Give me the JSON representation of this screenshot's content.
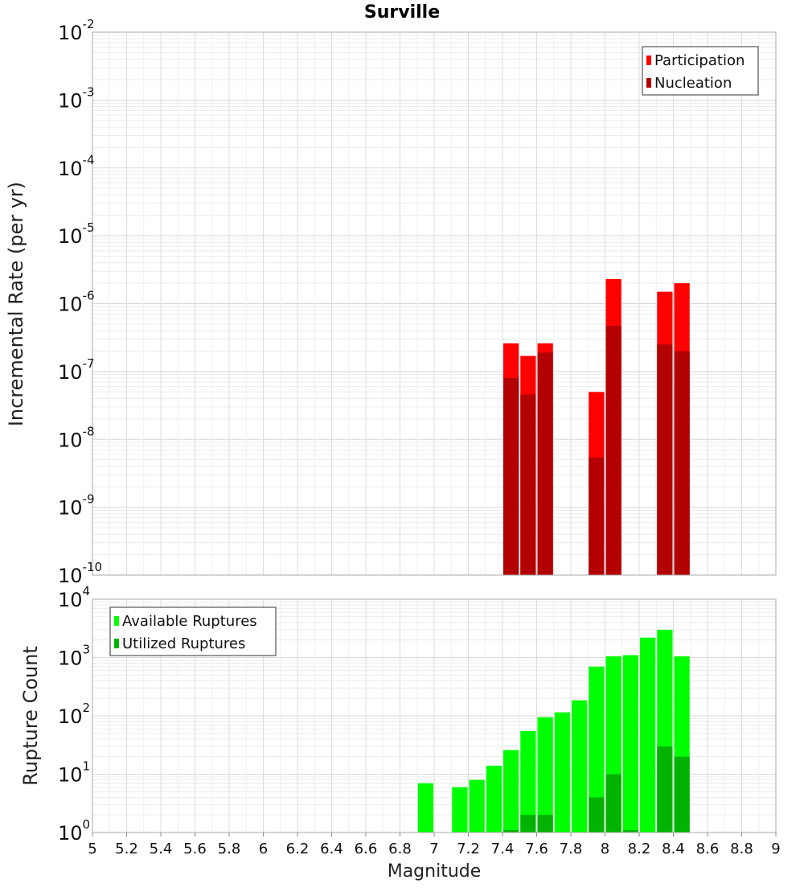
{
  "title": "Surville",
  "xlabel": "Magnitude",
  "chart_data": [
    {
      "type": "bar",
      "title": "Surville",
      "xlabel": "",
      "ylabel": "Incremental Rate (per yr)",
      "y_scale": "log",
      "xlim": [
        5,
        9
      ],
      "ylim": [
        1e-10,
        0.01
      ],
      "bar_width": 0.1,
      "grid": true,
      "legend_position": "top-right",
      "series": [
        {
          "name": "Participation",
          "color": "#ff0000",
          "points": [
            {
              "x": 7.45,
              "y": 2.6e-07
            },
            {
              "x": 7.55,
              "y": 1.7e-07
            },
            {
              "x": 7.65,
              "y": 2.6e-07
            },
            {
              "x": 7.95,
              "y": 5e-08
            },
            {
              "x": 8.05,
              "y": 2.3e-06
            },
            {
              "x": 8.35,
              "y": 1.5e-06
            },
            {
              "x": 8.45,
              "y": 2e-06
            }
          ]
        },
        {
          "name": "Nucleation",
          "color": "#b30000",
          "points": [
            {
              "x": 7.45,
              "y": 8e-08
            },
            {
              "x": 7.55,
              "y": 4.6e-08
            },
            {
              "x": 7.65,
              "y": 1.9e-07
            },
            {
              "x": 7.95,
              "y": 5.4e-09
            },
            {
              "x": 8.05,
              "y": 4.7e-07
            },
            {
              "x": 8.35,
              "y": 2.5e-07
            },
            {
              "x": 8.45,
              "y": 2e-07
            }
          ]
        }
      ]
    },
    {
      "type": "bar",
      "xlabel": "Magnitude",
      "ylabel": "Rupture Count",
      "y_scale": "log",
      "xlim": [
        5,
        9
      ],
      "ylim": [
        1,
        10000
      ],
      "bar_width": 0.1,
      "grid": true,
      "legend_position": "top-left",
      "x_ticks": [
        "5",
        "5.2",
        "5.4",
        "5.6",
        "5.8",
        "6",
        "6.2",
        "6.4",
        "6.6",
        "6.8",
        "7",
        "7.2",
        "7.4",
        "7.6",
        "7.8",
        "8",
        "8.2",
        "8.4",
        "8.6",
        "8.8",
        "9"
      ],
      "series": [
        {
          "name": "Available Ruptures",
          "color": "#00ff00",
          "points": [
            {
              "x": 6.95,
              "y": 7
            },
            {
              "x": 7.15,
              "y": 6
            },
            {
              "x": 7.25,
              "y": 8
            },
            {
              "x": 7.35,
              "y": 14
            },
            {
              "x": 7.45,
              "y": 26
            },
            {
              "x": 7.55,
              "y": 55
            },
            {
              "x": 7.65,
              "y": 95
            },
            {
              "x": 7.75,
              "y": 115
            },
            {
              "x": 7.85,
              "y": 185
            },
            {
              "x": 7.95,
              "y": 700
            },
            {
              "x": 8.05,
              "y": 1050
            },
            {
              "x": 8.15,
              "y": 1100
            },
            {
              "x": 8.25,
              "y": 2200
            },
            {
              "x": 8.35,
              "y": 3000
            },
            {
              "x": 8.45,
              "y": 1050
            }
          ]
        },
        {
          "name": "Utilized Ruptures",
          "color": "#00b300",
          "points": [
            {
              "x": 7.45,
              "y": 1.1
            },
            {
              "x": 7.55,
              "y": 2
            },
            {
              "x": 7.65,
              "y": 2
            },
            {
              "x": 7.95,
              "y": 4
            },
            {
              "x": 8.05,
              "y": 10
            },
            {
              "x": 8.15,
              "y": 1.1
            },
            {
              "x": 8.35,
              "y": 30
            },
            {
              "x": 8.45,
              "y": 20
            }
          ]
        }
      ]
    }
  ]
}
